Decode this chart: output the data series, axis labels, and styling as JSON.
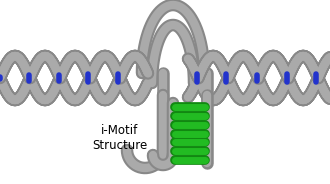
{
  "bg_color": "#ffffff",
  "strand_color": "#aaaaaa",
  "strand_dark": "#888888",
  "rung_blue": "#2233cc",
  "green_color": "#22bb22",
  "green_dark": "#118811",
  "label_text": "i-Motif\nStructure",
  "figsize": [
    3.3,
    1.84
  ],
  "dpi": 100
}
